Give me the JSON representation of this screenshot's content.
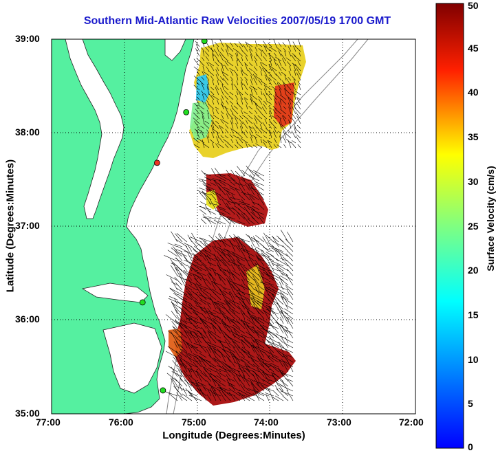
{
  "title": "Southern Mid-Atlantic Raw Velocities 2007/05/19 1700 GMT",
  "x_axis_label": "Longitude (Degrees:Minutes)",
  "y_axis_label": "Latitude (Degrees:Minutes)",
  "colorbar_label": "Surface Velocity (cm/s)",
  "x_ticks": [
    "77:00",
    "76:00",
    "75:00",
    "74:00",
    "73:00",
    "72:00"
  ],
  "y_ticks": [
    "39:00",
    "38:00",
    "37:00",
    "36:00",
    "35:00"
  ],
  "colorbar_ticks": [
    "0",
    "5",
    "10",
    "15",
    "20",
    "25",
    "30",
    "35",
    "40",
    "45",
    "50"
  ],
  "map": {
    "lon_range": [
      -77,
      -72
    ],
    "lat_range": [
      35,
      39
    ],
    "land_color": "#55f0a0",
    "grid": "dotted",
    "colormap": "jet",
    "velocity_range_cm_s": [
      0,
      50
    ],
    "station_markers": [
      {
        "lon": -74.9,
        "lat": 38.98,
        "color": "#22dd22"
      },
      {
        "lon": -75.15,
        "lat": 38.22,
        "color": "#22dd22"
      },
      {
        "lon": -75.55,
        "lat": 37.68,
        "color": "#ee3322"
      },
      {
        "lon": -75.75,
        "lat": 36.19,
        "color": "#22dd22"
      },
      {
        "lon": -75.47,
        "lat": 35.25,
        "color": "#22dd22"
      }
    ]
  }
}
